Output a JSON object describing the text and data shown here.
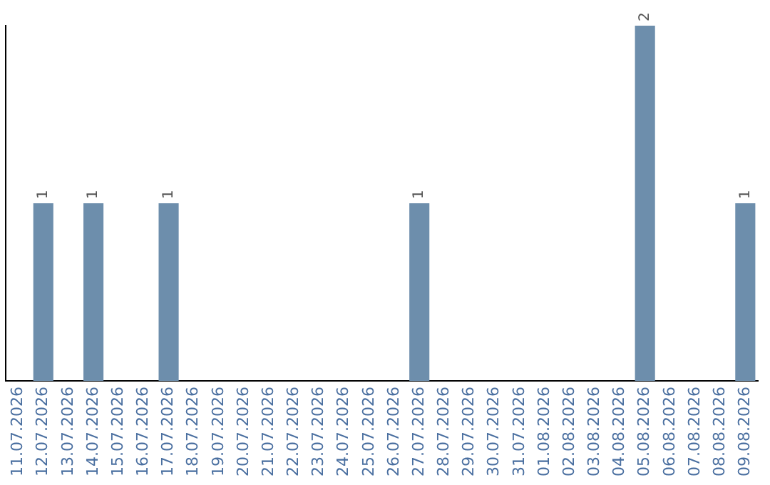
{
  "chart_data": {
    "type": "bar",
    "categories": [
      "11.07.2026",
      "12.07.2026",
      "13.07.2026",
      "14.07.2026",
      "15.07.2026",
      "16.07.2026",
      "17.07.2026",
      "18.07.2026",
      "19.07.2026",
      "20.07.2026",
      "21.07.2026",
      "22.07.2026",
      "23.07.2026",
      "24.07.2026",
      "25.07.2026",
      "26.07.2026",
      "27.07.2026",
      "28.07.2026",
      "29.07.2026",
      "30.07.2026",
      "31.07.2026",
      "01.08.2026",
      "02.08.2026",
      "03.08.2026",
      "04.08.2026",
      "05.08.2026",
      "06.08.2026",
      "07.08.2026",
      "08.08.2026",
      "09.08.2026"
    ],
    "values": [
      0,
      1,
      0,
      1,
      0,
      0,
      1,
      0,
      0,
      0,
      0,
      0,
      0,
      0,
      0,
      0,
      1,
      0,
      0,
      0,
      0,
      0,
      0,
      0,
      0,
      2,
      0,
      0,
      0,
      1
    ],
    "value_labels": [
      null,
      "1",
      null,
      "1",
      null,
      null,
      "1",
      null,
      null,
      null,
      null,
      null,
      null,
      null,
      null,
      null,
      "1",
      null,
      null,
      null,
      null,
      null,
      null,
      null,
      null,
      "2",
      null,
      null,
      null,
      "1"
    ],
    "color": "#6d8eac",
    "ylim": [
      0,
      2
    ],
    "tick_labels": "x",
    "grid": false,
    "legend": false
  }
}
